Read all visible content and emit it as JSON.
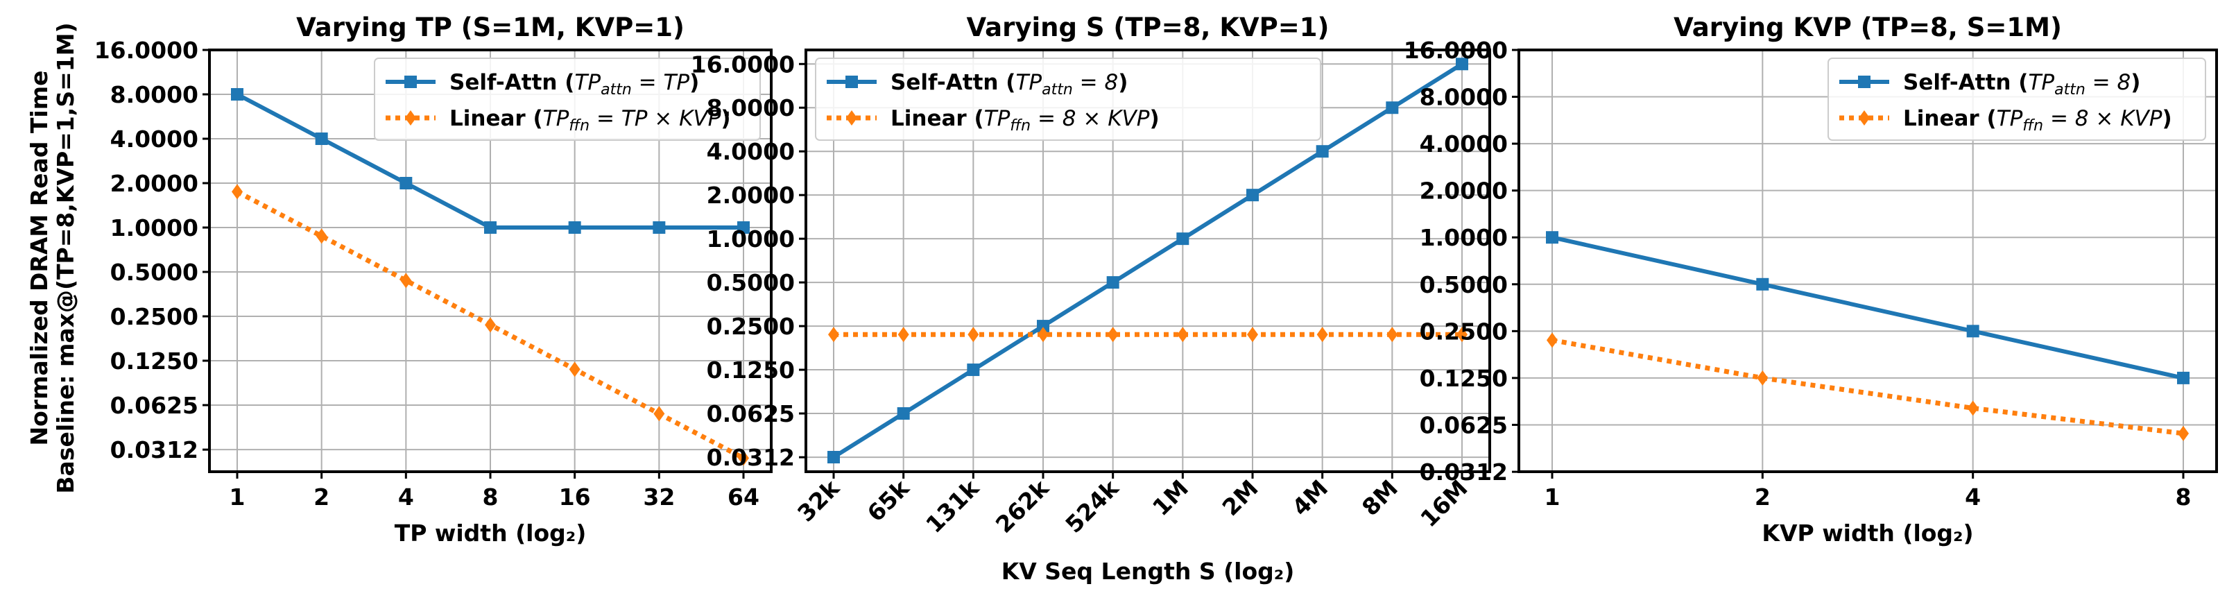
{
  "figure": {
    "ylabel_line1": "Normalized DRAM Read Time",
    "ylabel_line2": "Baseline: max@(TP=8,KVP=1,S=1M)"
  },
  "colors": {
    "self_attn": "#1f77b4",
    "linear": "#ff7f0e",
    "grid": "#b0b0b0"
  },
  "chart_data": [
    {
      "type": "line",
      "title": "Varying TP (S=1M, KVP=1)",
      "xlabel": "TP width (log₂)",
      "ylabel": "Normalized DRAM Read Time",
      "x_scale": "log2",
      "y_scale": "log2",
      "categories": [
        "1",
        "2",
        "4",
        "8",
        "16",
        "32",
        "64"
      ],
      "y_ticks": [
        "0.0312",
        "0.0625",
        "0.1250",
        "0.2500",
        "0.5000",
        "1.0000",
        "2.0000",
        "4.0000",
        "8.0000",
        "16.0000"
      ],
      "ylim": [
        0.0221,
        16.0
      ],
      "legend_position": "upper right",
      "grid": true,
      "series": [
        {
          "name": "Self-Attn (TP_attn = TP)",
          "legend_text": "Self-Attn (",
          "legend_sub": "attn",
          "legend_eq": " = TP",
          "marker": "square",
          "style": "solid",
          "color": "#1f77b4",
          "values": [
            8.0,
            4.0,
            2.0,
            1.0,
            1.0,
            1.0,
            1.0
          ]
        },
        {
          "name": "Linear (TP_ffn = TP × KVP)",
          "legend_text": "Linear (",
          "legend_sub": "ffn",
          "legend_eq": " = TP × KVP",
          "marker": "diamond",
          "style": "dotted",
          "color": "#ff7f0e",
          "values": [
            1.75,
            0.875,
            0.4375,
            0.21875,
            0.109375,
            0.0546875,
            0.02734375
          ]
        }
      ]
    },
    {
      "type": "line",
      "title": "Varying S (TP=8, KVP=1)",
      "xlabel": "KV Seq Length S (log₂)",
      "x_scale": "log2",
      "y_scale": "log2",
      "categories": [
        "32k",
        "65k",
        "131k",
        "262k",
        "524k",
        "1M",
        "2M",
        "4M",
        "8M",
        "16M"
      ],
      "y_ticks": [
        "0.0312",
        "0.0625",
        "0.1250",
        "0.2500",
        "0.5000",
        "1.0000",
        "2.0000",
        "4.0000",
        "8.0000",
        "16.0000"
      ],
      "ylim": [
        0.0248,
        20.0
      ],
      "legend_position": "upper left",
      "grid": true,
      "series": [
        {
          "name": "Self-Attn (TP_attn = 8)",
          "legend_text": "Self-Attn (",
          "legend_sub": "attn",
          "legend_eq": " = 8",
          "marker": "square",
          "style": "solid",
          "color": "#1f77b4",
          "values": [
            0.03125,
            0.0625,
            0.125,
            0.25,
            0.5,
            1.0,
            2.0,
            4.0,
            8.0,
            16.0
          ]
        },
        {
          "name": "Linear (TP_ffn = 8 × KVP)",
          "legend_text": "Linear (",
          "legend_sub": "ffn",
          "legend_eq": " = 8 × KVP",
          "marker": "diamond",
          "style": "dotted",
          "color": "#ff7f0e",
          "values": [
            0.21875,
            0.21875,
            0.21875,
            0.21875,
            0.21875,
            0.21875,
            0.21875,
            0.21875,
            0.21875,
            0.21875
          ]
        }
      ]
    },
    {
      "type": "line",
      "title": "Varying KVP (TP=8, S=1M)",
      "xlabel": "KVP width (log₂)",
      "x_scale": "log2",
      "y_scale": "log2",
      "categories": [
        "1",
        "2",
        "4",
        "8"
      ],
      "y_ticks": [
        "0.0312",
        "0.0625",
        "0.1250",
        "0.2500",
        "0.5000",
        "1.0000",
        "2.0000",
        "4.0000",
        "8.0000",
        "16.0000"
      ],
      "ylim": [
        0.03125,
        16.0
      ],
      "legend_position": "upper right",
      "grid": true,
      "series": [
        {
          "name": "Self-Attn (TP_attn = 8)",
          "legend_text": "Self-Attn (",
          "legend_sub": "attn",
          "legend_eq": " = 8",
          "marker": "square",
          "style": "solid",
          "color": "#1f77b4",
          "values": [
            1.0,
            0.5,
            0.25,
            0.125
          ]
        },
        {
          "name": "Linear (TP_ffn = 8 × KVP)",
          "legend_text": "Linear (",
          "legend_sub": "ffn",
          "legend_eq": " = 8 × KVP",
          "marker": "diamond",
          "style": "dotted",
          "color": "#ff7f0e",
          "values": [
            0.21875,
            0.125,
            0.08,
            0.055
          ]
        }
      ]
    }
  ]
}
